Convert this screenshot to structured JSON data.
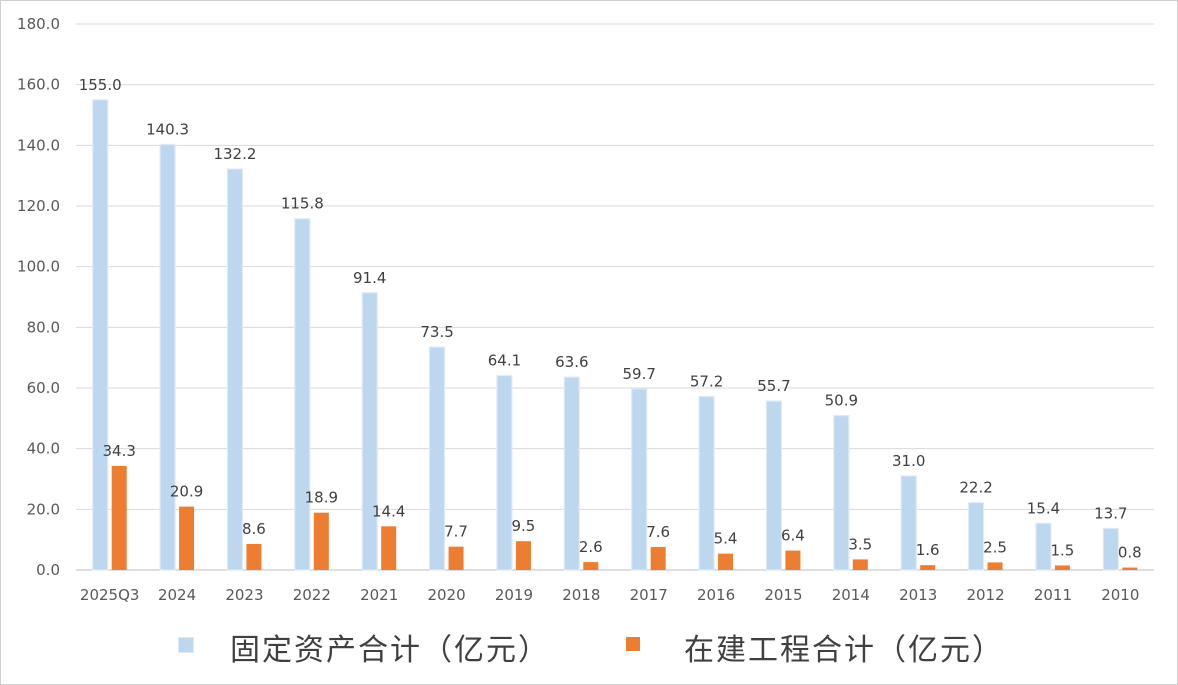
{
  "chart_data": {
    "type": "bar",
    "categories": [
      "2025Q3",
      "2024",
      "2023",
      "2022",
      "2021",
      "2020",
      "2019",
      "2018",
      "2017",
      "2016",
      "2015",
      "2014",
      "2013",
      "2012",
      "2011",
      "2010"
    ],
    "series": [
      {
        "name": "固定资产合计（亿元）",
        "color": "#bdd7ee",
        "values": [
          155.0,
          140.3,
          132.2,
          115.8,
          91.4,
          73.5,
          64.1,
          63.6,
          59.7,
          57.2,
          55.7,
          50.9,
          31.0,
          22.2,
          15.4,
          13.7
        ]
      },
      {
        "name": "在建工程合计（亿元）",
        "color": "#ed7d31",
        "values": [
          34.3,
          20.9,
          8.6,
          18.9,
          14.4,
          7.7,
          9.5,
          2.6,
          7.6,
          5.4,
          6.4,
          3.5,
          1.6,
          2.5,
          1.5,
          0.8
        ]
      }
    ],
    "ylim": [
      0,
      180
    ],
    "ytick_step": 20,
    "ytick_labels": [
      "0.0",
      "20.0",
      "40.0",
      "60.0",
      "80.0",
      "100.0",
      "120.0",
      "140.0",
      "160.0",
      "180.0"
    ],
    "grid": true,
    "legend_position": "bottom",
    "data_labels": true,
    "title": "",
    "xlabel": "",
    "ylabel": ""
  }
}
